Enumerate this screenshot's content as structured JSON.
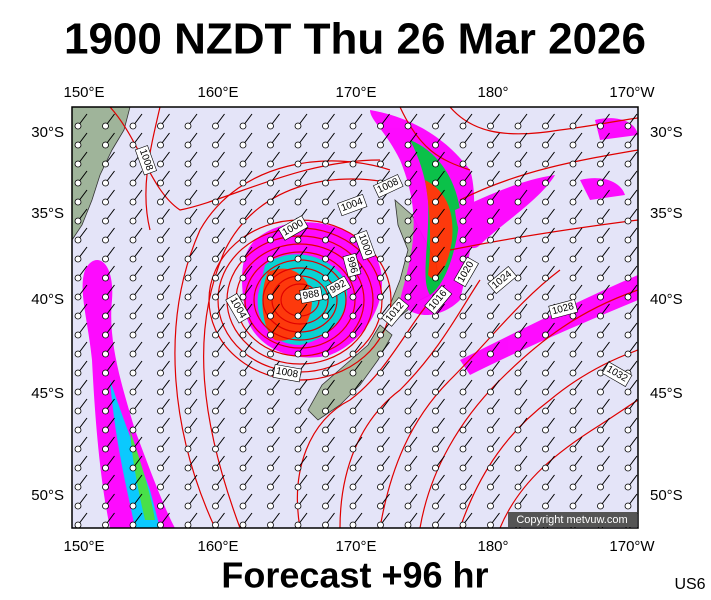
{
  "header": {
    "title": "1900 NZDT Thu 26 Mar 2026"
  },
  "map": {
    "lon_labels": [
      "150°E",
      "160°E",
      "170°E",
      "180°",
      "170°W"
    ],
    "lat_labels": [
      "30°S",
      "35°S",
      "40°S",
      "45°S",
      "50°S"
    ],
    "isobar_labels": [
      1008,
      1008,
      1004,
      1000,
      1000,
      996,
      992,
      988,
      1004,
      1012,
      1016,
      1020,
      1024,
      1028,
      1032,
      1008
    ],
    "copyright": "Copyright metvuw.com"
  },
  "footer": {
    "forecast": "Forecast +96 hr",
    "code": "US6"
  }
}
